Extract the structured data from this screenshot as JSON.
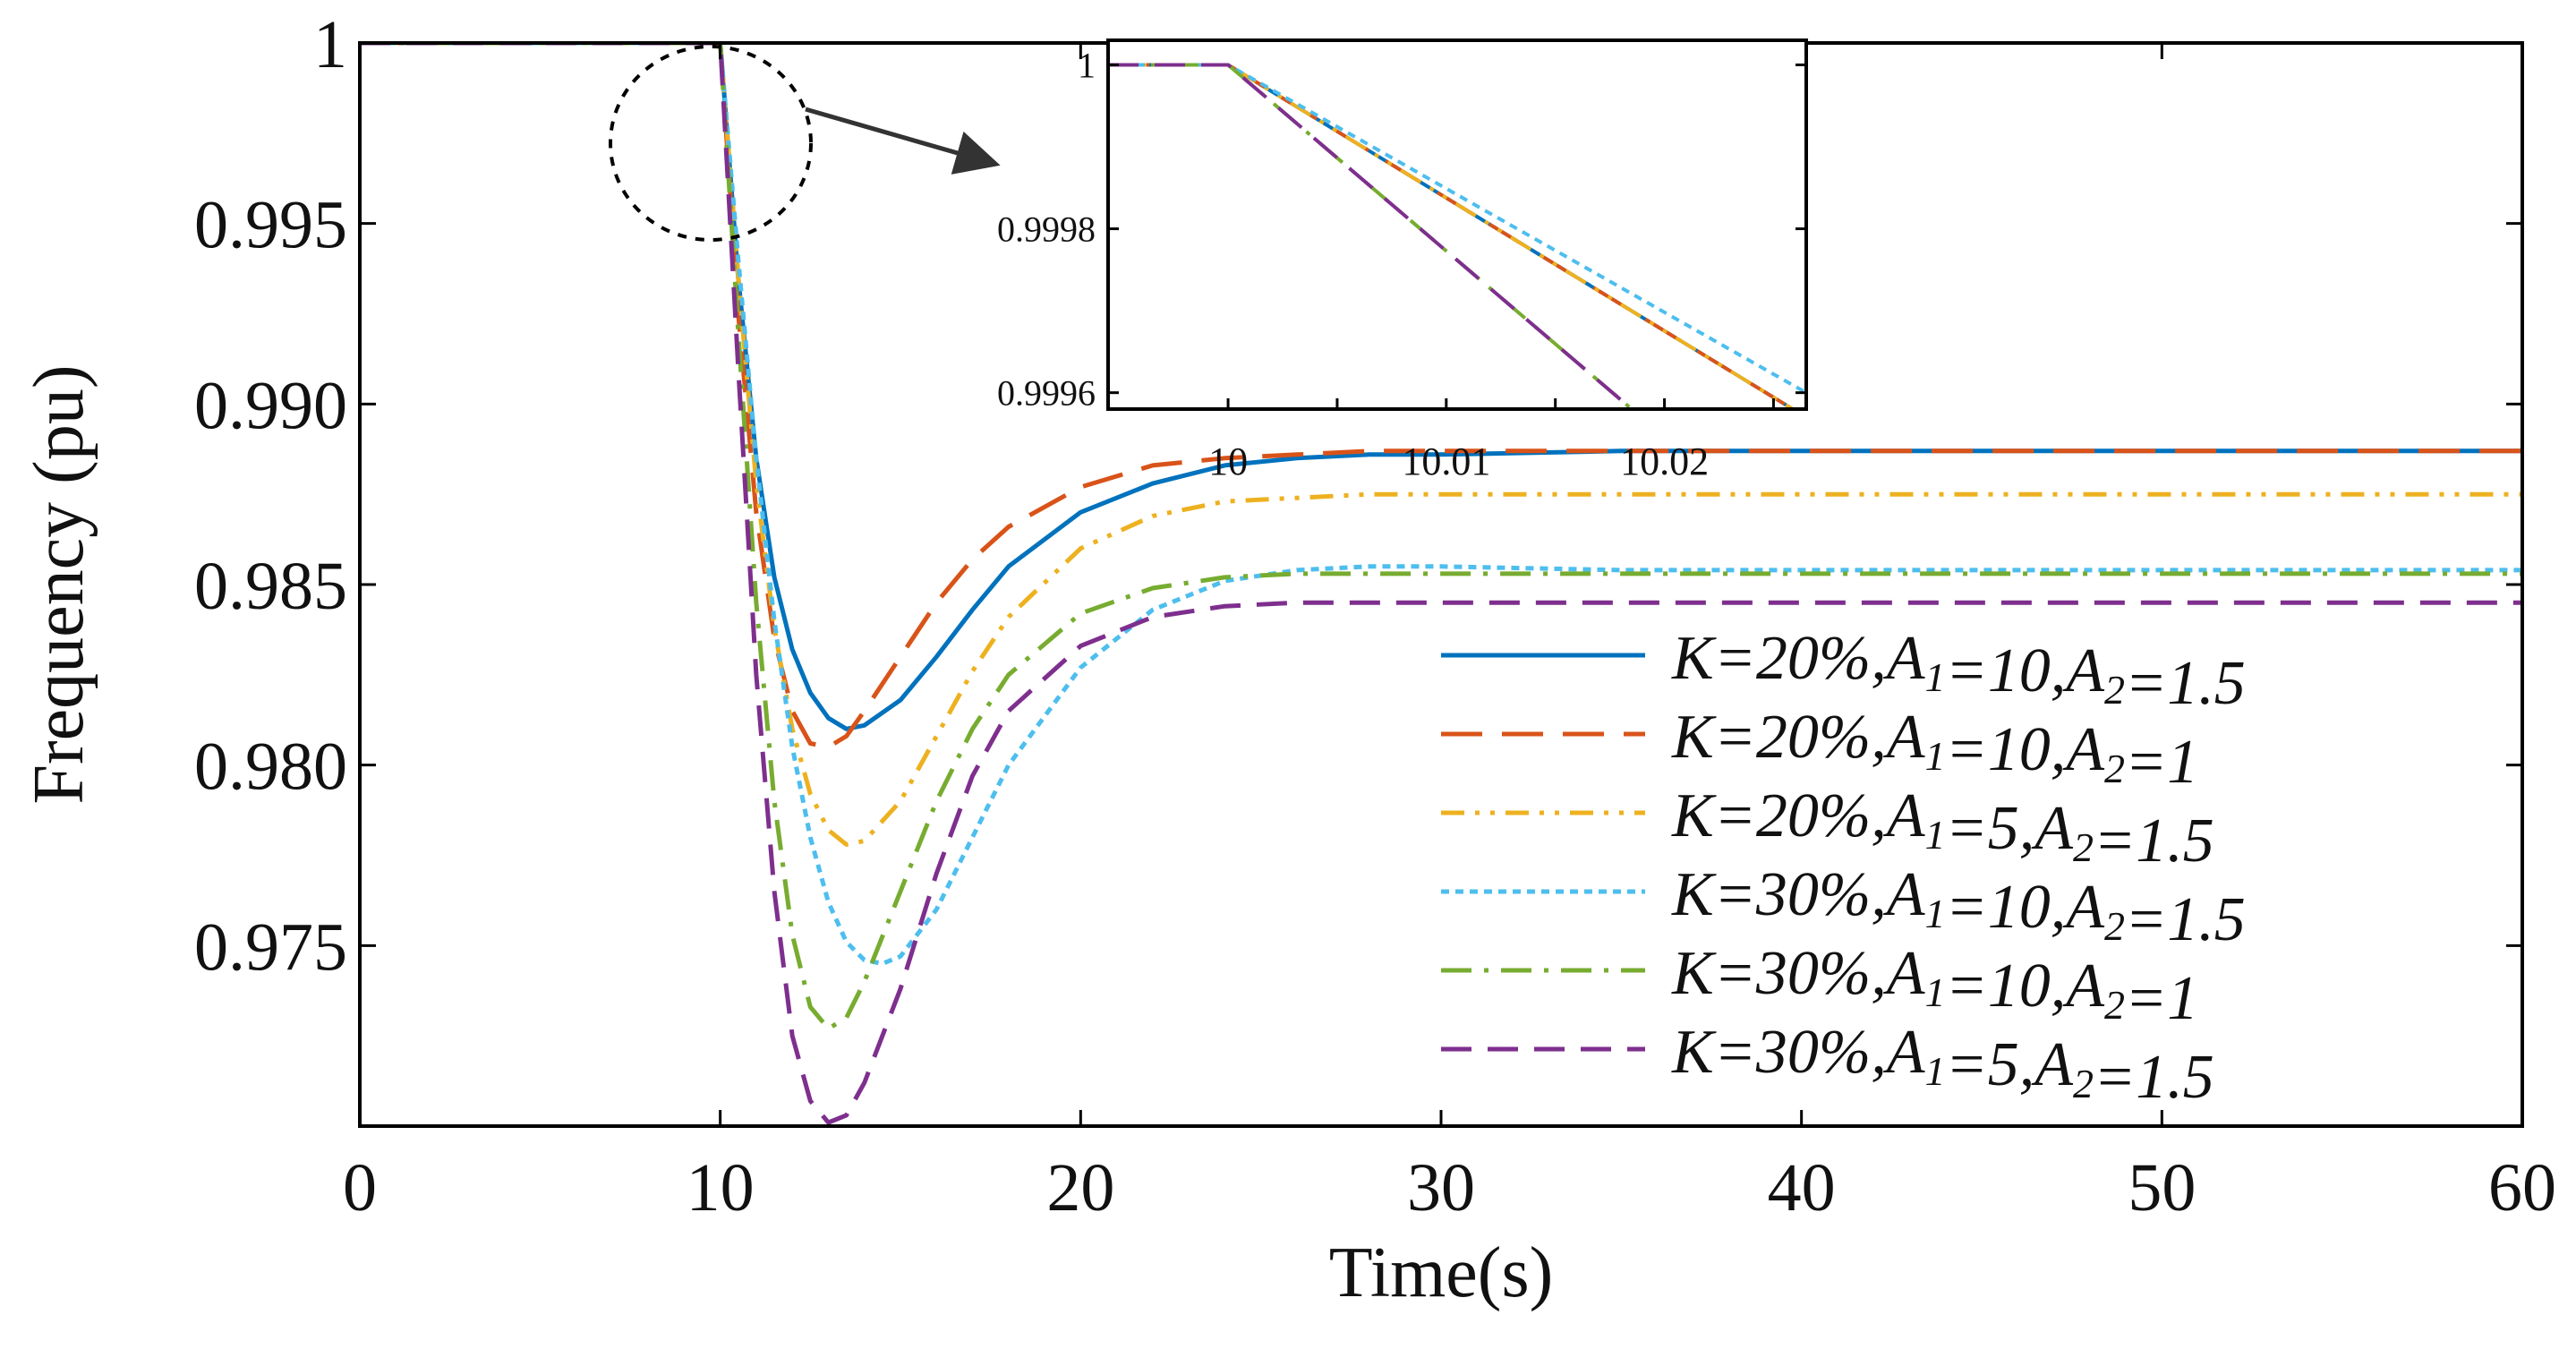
{
  "chart_data": {
    "type": "line",
    "xlabel": "Time(s)",
    "ylabel": "Frequency (pu)",
    "xlim": [
      0,
      60
    ],
    "ylim": [
      0.97,
      1.0
    ],
    "xticks": [
      "0",
      "10",
      "20",
      "30",
      "40",
      "50",
      "60"
    ],
    "yticks": [
      "0.975",
      "0.980",
      "0.985",
      "0.990",
      "0.995",
      "1"
    ],
    "grid": false,
    "legend_position": "lower-right",
    "series": [
      {
        "label_prefix": "K=20%,A",
        "a1": "10",
        "a2": "1.5",
        "color": "#0072BD",
        "dash": "solid",
        "x": [
          0,
          10,
          10.5,
          11,
          11.5,
          12,
          12.5,
          13,
          13.5,
          14,
          15,
          16,
          17,
          18,
          20,
          22,
          24,
          26,
          28,
          30,
          35,
          40,
          50,
          60
        ],
        "y": [
          1.0,
          1.0,
          0.9935,
          0.9885,
          0.9852,
          0.9832,
          0.982,
          0.9813,
          0.981,
          0.9811,
          0.9818,
          0.983,
          0.9843,
          0.9855,
          0.987,
          0.9878,
          0.9883,
          0.9885,
          0.9886,
          0.9886,
          0.9887,
          0.9887,
          0.9887,
          0.9887
        ]
      },
      {
        "label_prefix": "K=20%,A",
        "a1": "10",
        "a2": "1",
        "color": "#D95319",
        "dash": "longdash",
        "x": [
          0,
          10,
          10.5,
          11,
          11.5,
          12,
          12.5,
          13,
          13.5,
          14,
          15,
          16,
          17,
          18,
          20,
          22,
          24,
          26,
          28,
          30,
          35,
          40,
          50,
          60
        ],
        "y": [
          1.0,
          1.0,
          0.9925,
          0.987,
          0.9835,
          0.9815,
          0.9806,
          0.9805,
          0.9808,
          0.9815,
          0.983,
          0.9845,
          0.9857,
          0.9866,
          0.9877,
          0.9883,
          0.9885,
          0.9886,
          0.9887,
          0.9887,
          0.9887,
          0.9887,
          0.9887,
          0.9887
        ]
      },
      {
        "label_prefix": "K=20%,A",
        "a1": "5",
        "a2": "1.5",
        "color": "#EDB120",
        "dash": "dashdotdot",
        "x": [
          0,
          10,
          10.5,
          11,
          11.5,
          12,
          12.5,
          13,
          13.5,
          14,
          15,
          16,
          17,
          18,
          20,
          22,
          24,
          26,
          28,
          30,
          35,
          40,
          50,
          60
        ],
        "y": [
          1.0,
          1.0,
          0.9935,
          0.9878,
          0.9838,
          0.981,
          0.9792,
          0.9782,
          0.9778,
          0.9779,
          0.979,
          0.9808,
          0.9826,
          0.9841,
          0.986,
          0.9869,
          0.9873,
          0.9874,
          0.9875,
          0.9875,
          0.9875,
          0.9875,
          0.9875,
          0.9875
        ]
      },
      {
        "label_prefix": "K=30%,A",
        "a1": "10",
        "a2": "1.5",
        "color": "#4DBEEE",
        "dash": "dotted",
        "x": [
          0,
          10,
          10.5,
          11,
          11.5,
          12,
          12.5,
          13,
          13.5,
          14,
          14.5,
          15,
          16,
          17,
          18,
          20,
          22,
          24,
          26,
          28,
          30,
          35,
          40,
          50,
          60
        ],
        "y": [
          1.0,
          1.0,
          0.994,
          0.9885,
          0.984,
          0.9805,
          0.978,
          0.9762,
          0.9751,
          0.9746,
          0.9745,
          0.9747,
          0.976,
          0.978,
          0.98,
          0.9827,
          0.9843,
          0.9851,
          0.9854,
          0.9855,
          0.9855,
          0.9854,
          0.9854,
          0.9854,
          0.9854
        ]
      },
      {
        "label_prefix": "K=30%,A",
        "a1": "10",
        "a2": "1",
        "color": "#77AC30",
        "dash": "dashdot",
        "x": [
          0,
          10,
          10.5,
          11,
          11.5,
          12,
          12.5,
          13,
          13.5,
          14,
          15,
          16,
          17,
          18,
          20,
          22,
          24,
          26,
          28,
          30,
          35,
          40,
          50,
          60
        ],
        "y": [
          1.0,
          1.0,
          0.992,
          0.9845,
          0.979,
          0.9753,
          0.9733,
          0.9727,
          0.973,
          0.974,
          0.9765,
          0.979,
          0.981,
          0.9825,
          0.9842,
          0.9849,
          0.9852,
          0.9853,
          0.9853,
          0.9853,
          0.9853,
          0.9853,
          0.9853,
          0.9853
        ]
      },
      {
        "label_prefix": "K=30%,A",
        "a1": "5",
        "a2": "1.5",
        "color": "#7E2F8E",
        "dash": "dashed",
        "x": [
          0,
          10,
          10.5,
          11,
          11.5,
          12,
          12.5,
          13,
          13.5,
          14,
          15,
          16,
          17,
          18,
          20,
          22,
          24,
          26,
          28,
          30,
          35,
          40,
          50,
          60
        ],
        "y": [
          1.0,
          1.0,
          0.991,
          0.9825,
          0.9765,
          0.9725,
          0.9707,
          0.9701,
          0.9703,
          0.9712,
          0.9738,
          0.977,
          0.9797,
          0.9815,
          0.9833,
          0.9841,
          0.9844,
          0.9845,
          0.9845,
          0.9845,
          0.9845,
          0.9845,
          0.9845,
          0.9845
        ]
      }
    ],
    "inset": {
      "xlim": [
        9.9945,
        10.0265
      ],
      "ylim": [
        0.99958,
        1.00003
      ],
      "xticks": [
        "10",
        "10.01",
        "10.02"
      ],
      "yticks": [
        "0.9996",
        "0.9998",
        "1"
      ],
      "zoom_circle_center": [
        10.0,
        0.9973
      ],
      "series": [
        {
          "x": [
            9.9945,
            10.0,
            10.0265
          ],
          "y": [
            1.0,
            1.0,
            0.99957
          ]
        },
        {
          "x": [
            9.9945,
            10.0,
            10.0265
          ],
          "y": [
            1.0,
            1.0,
            0.99957
          ]
        },
        {
          "x": [
            9.9945,
            10.0,
            10.0265
          ],
          "y": [
            1.0,
            1.0,
            0.99957
          ]
        },
        {
          "x": [
            9.9945,
            10.0,
            10.0265
          ],
          "y": [
            1.0,
            1.0,
            0.9996
          ]
        },
        {
          "x": [
            9.9945,
            10.0,
            10.0185
          ],
          "y": [
            1.0,
            1.0,
            0.99958
          ]
        },
        {
          "x": [
            9.9945,
            10.0,
            10.0185
          ],
          "y": [
            1.0,
            1.0,
            0.99958
          ]
        }
      ]
    }
  }
}
